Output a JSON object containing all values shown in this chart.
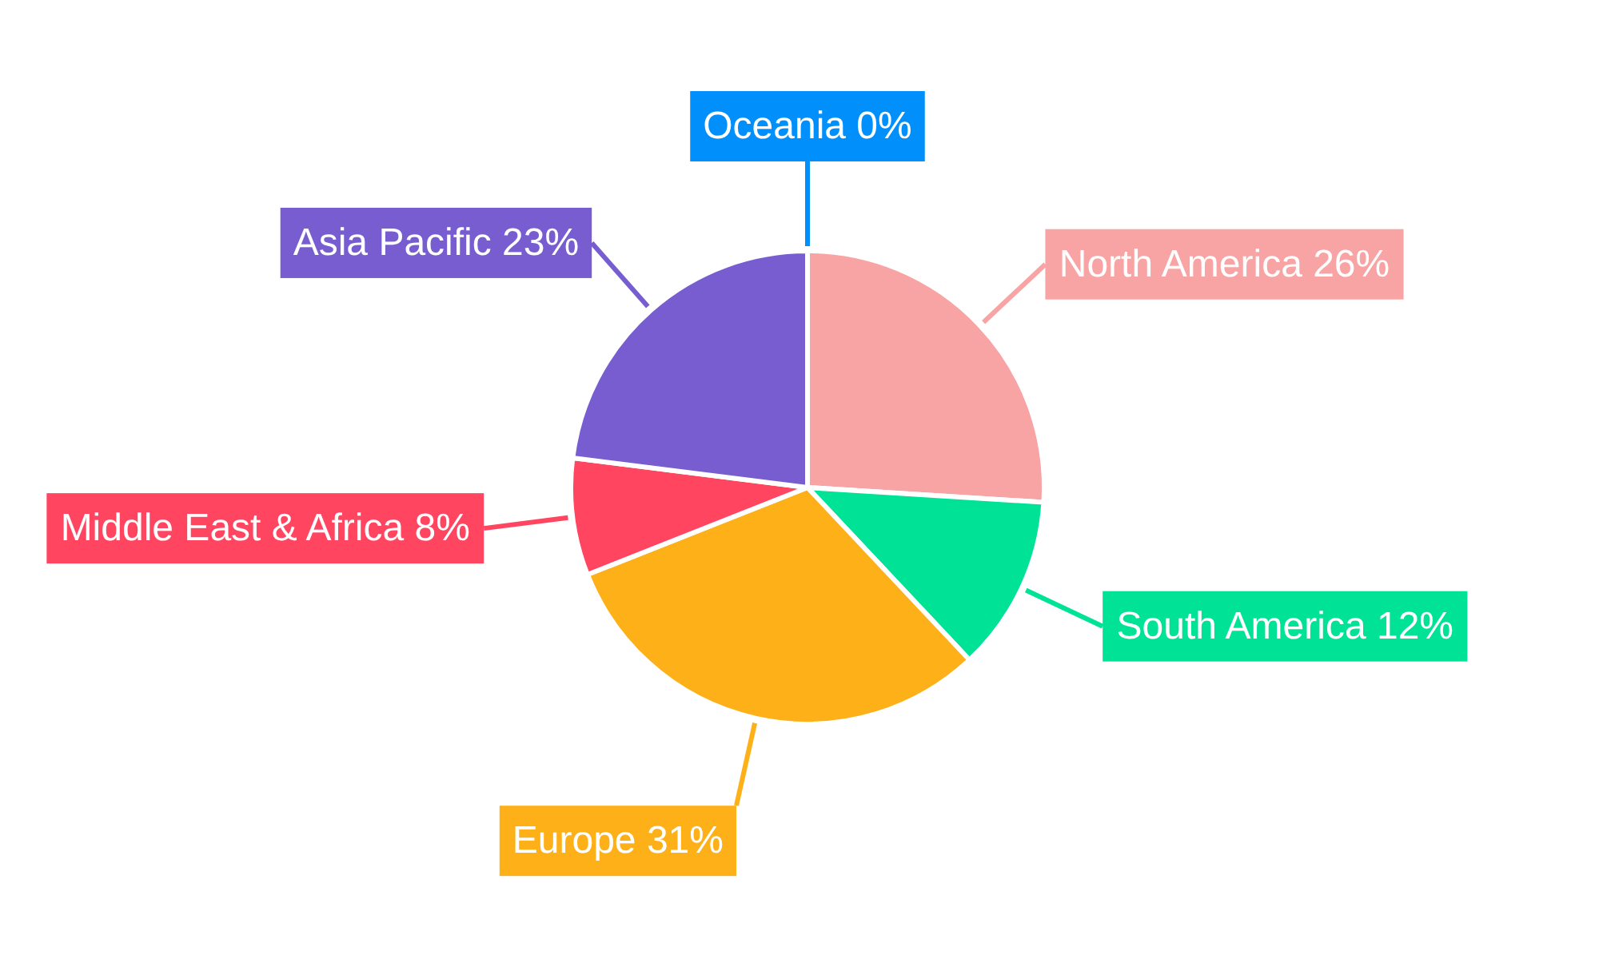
{
  "chart_data": {
    "type": "pie",
    "categories": [
      "North America",
      "South America",
      "Europe",
      "Middle East & Africa",
      "Asia Pacific",
      "Oceania"
    ],
    "values": [
      26,
      12,
      31,
      8,
      23,
      0
    ],
    "value_labels": [
      "26%",
      "12%",
      "31%",
      "8%",
      "23%",
      "0%"
    ],
    "colors": [
      "#f8a3a4",
      "#00e396",
      "#feb019",
      "#ff4560",
      "#775dd0",
      "#008ffb"
    ]
  }
}
